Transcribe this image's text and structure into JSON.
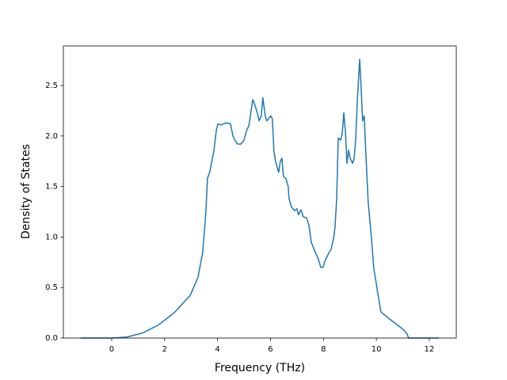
{
  "chart_data": {
    "type": "line",
    "xlabel": "Frequency (THz)",
    "ylabel": "Density of States",
    "x": [
      -1.17,
      0,
      0.57,
      1.17,
      1.77,
      2.36,
      2.96,
      3.26,
      3.44,
      3.56,
      3.62,
      3.71,
      3.86,
      3.95,
      4.01,
      4.13,
      4.31,
      4.49,
      4.58,
      4.67,
      4.76,
      4.88,
      5.0,
      5.09,
      5.18,
      5.24,
      5.33,
      5.42,
      5.51,
      5.57,
      5.65,
      5.71,
      5.8,
      5.86,
      5.95,
      6.01,
      6.07,
      6.13,
      6.19,
      6.31,
      6.37,
      6.43,
      6.49,
      6.58,
      6.67,
      6.7,
      6.79,
      6.91,
      7.0,
      7.06,
      7.15,
      7.24,
      7.36,
      7.45,
      7.54,
      7.69,
      7.81,
      7.9,
      7.99,
      8.05,
      8.2,
      8.29,
      8.38,
      8.44,
      8.5,
      8.56,
      8.65,
      8.71,
      8.77,
      8.83,
      8.89,
      8.95,
      9.01,
      9.1,
      9.16,
      9.22,
      9.28,
      9.37,
      9.42,
      9.48,
      9.54,
      9.6,
      9.69,
      9.81,
      9.9,
      10.02,
      10.17,
      10.44,
      10.74,
      11.04,
      11.16,
      11.22,
      12.36
    ],
    "values": [
      0,
      0,
      0.01,
      0.05,
      0.13,
      0.25,
      0.42,
      0.6,
      0.85,
      1.25,
      1.58,
      1.65,
      1.85,
      2.05,
      2.12,
      2.11,
      2.13,
      2.12,
      2.0,
      1.95,
      1.92,
      1.92,
      1.96,
      2.05,
      2.1,
      2.2,
      2.36,
      2.3,
      2.22,
      2.15,
      2.2,
      2.38,
      2.2,
      2.15,
      2.18,
      2.2,
      2.17,
      1.85,
      1.75,
      1.64,
      1.75,
      1.78,
      1.6,
      1.58,
      1.5,
      1.38,
      1.3,
      1.26,
      1.28,
      1.22,
      1.27,
      1.2,
      1.19,
      1.12,
      0.95,
      0.85,
      0.78,
      0.7,
      0.7,
      0.76,
      0.84,
      0.88,
      0.98,
      1.1,
      1.38,
      1.98,
      1.96,
      2.02,
      2.23,
      2.05,
      1.73,
      1.86,
      1.78,
      1.73,
      1.78,
      1.97,
      2.35,
      2.76,
      2.5,
      2.15,
      2.2,
      1.85,
      1.35,
      1.0,
      0.7,
      0.5,
      0.26,
      0.2,
      0.14,
      0.08,
      0.04,
      0,
      0
    ],
    "color": "#1f77b4",
    "xlim": [
      -1.825,
      13.02
    ],
    "ylim": [
      0,
      2.892
    ],
    "xticks": [
      0,
      2,
      4,
      6,
      8,
      10,
      12
    ],
    "yticks": [
      {
        "value": 0,
        "label": "0.0"
      },
      0.5,
      {
        "value": 1,
        "label": "1.0"
      },
      1.5,
      {
        "value": 2,
        "label": "2.0"
      },
      2.5
    ]
  }
}
